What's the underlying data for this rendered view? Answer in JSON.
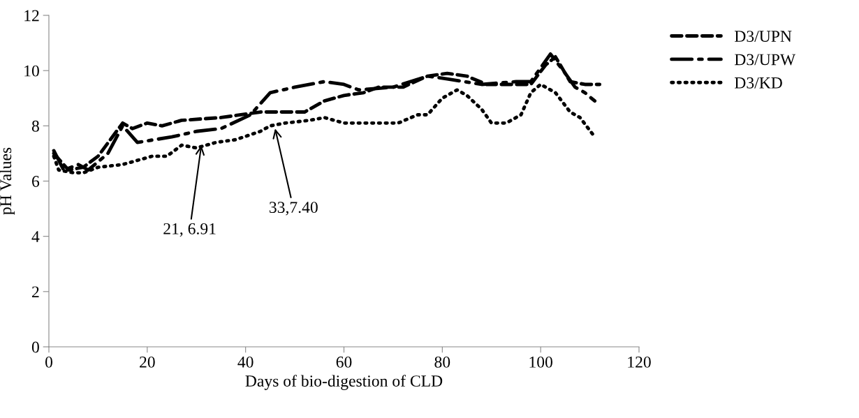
{
  "chart_data": {
    "type": "line",
    "xlabel": "Days of bio-digestion of CLD",
    "ylabel": "pH Values",
    "xlim": [
      0,
      120
    ],
    "xticks": [
      0,
      20,
      40,
      60,
      80,
      100,
      120
    ],
    "ylim": [
      0,
      12
    ],
    "yticks": [
      0,
      2,
      4,
      6,
      8,
      10,
      12
    ],
    "grid": false,
    "legend": "top right",
    "marker": "none",
    "series": [
      {
        "name": "D3/UPN",
        "color": "#000000",
        "line_style": "dashed",
        "x": [
          1,
          4,
          7,
          10,
          15,
          17,
          20,
          23,
          27,
          35,
          43,
          52,
          56,
          60,
          64,
          67,
          72,
          77,
          81,
          85,
          89,
          92,
          98,
          101,
          103,
          106,
          109,
          112
        ],
        "values": [
          7.0,
          6.4,
          6.5,
          6.9,
          8.1,
          7.9,
          8.1,
          8.0,
          8.2,
          8.3,
          8.5,
          8.5,
          8.9,
          9.1,
          9.2,
          9.4,
          9.4,
          9.8,
          9.9,
          9.8,
          9.5,
          9.5,
          9.5,
          10.2,
          10.5,
          9.6,
          9.5,
          9.5
        ]
      },
      {
        "name": "D3/UPW",
        "color": "#000000",
        "line_style": "dashdot",
        "x": [
          1,
          3,
          6,
          8,
          12,
          15,
          18,
          25,
          30,
          35,
          41,
          45,
          50,
          56,
          60,
          63,
          70,
          77,
          81,
          88,
          95,
          98,
          102,
          105,
          107,
          109,
          111
        ],
        "values": [
          7.1,
          6.4,
          6.6,
          6.4,
          7.0,
          8.0,
          7.4,
          7.6,
          7.8,
          7.9,
          8.4,
          9.2,
          9.4,
          9.6,
          9.5,
          9.3,
          9.4,
          9.8,
          9.7,
          9.5,
          9.6,
          9.6,
          10.6,
          9.9,
          9.4,
          9.2,
          8.9
        ]
      },
      {
        "name": "D3/KD",
        "color": "#000000",
        "line_style": "dotted",
        "x": [
          1,
          2,
          5,
          7,
          10,
          15,
          21,
          24,
          27,
          30,
          34,
          38,
          43,
          45,
          48,
          53,
          56,
          60,
          66,
          71,
          75,
          77,
          80,
          83,
          85,
          88,
          90,
          93,
          96,
          98,
          100,
          103,
          106,
          108,
          111
        ],
        "values": [
          6.9,
          6.4,
          6.3,
          6.3,
          6.5,
          6.6,
          6.9,
          6.9,
          7.3,
          7.2,
          7.4,
          7.5,
          7.8,
          8.0,
          8.1,
          8.2,
          8.3,
          8.1,
          8.1,
          8.1,
          8.4,
          8.4,
          9.0,
          9.3,
          9.1,
          8.6,
          8.1,
          8.1,
          8.4,
          9.2,
          9.5,
          9.2,
          8.5,
          8.3,
          7.6
        ]
      }
    ],
    "annotations": [
      {
        "text": "21, 6.91",
        "x": 31,
        "y": 7.3
      },
      {
        "text": "33,7.40",
        "x": 46,
        "y": 7.9
      }
    ]
  }
}
